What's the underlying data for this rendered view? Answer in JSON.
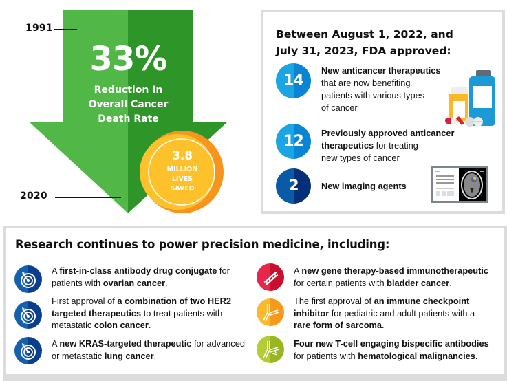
{
  "arrow": {
    "year_start": "1991",
    "year_end": "2020",
    "percent": "33%",
    "reduction_lines": [
      "Reduction In",
      "Overall Cancer",
      "Death Rate"
    ],
    "colors": {
      "light_green": "#51b848",
      "dark_green": "#2e9528"
    },
    "coin": {
      "number": "3.8",
      "lines": [
        "MILLION",
        "LIVES",
        "SAVED"
      ],
      "colors": {
        "yellow": "#fdc22b",
        "orange": "#f7941d"
      }
    }
  },
  "fda": {
    "title_lines": [
      "Between August 1, 2022, and",
      "July 31, 2023, FDA approved:"
    ],
    "items": [
      {
        "number": "14",
        "bold": "New anticancer therapeutics",
        "rest_lines": [
          "that are now benefiting",
          "patients with various types",
          "of cancer"
        ],
        "icon": "medicine-bottles-icon",
        "colors": [
          "#1aa6e4",
          "#0a85d6"
        ]
      },
      {
        "number": "12",
        "bold_lines": [
          "Previously approved anticancer",
          "therapeutics"
        ],
        "rest_inline": " for treating",
        "rest_lines": [
          "new types of cancer"
        ],
        "colors": [
          "#1aa6e4",
          "#0a85d6"
        ]
      },
      {
        "number": "2",
        "bold": "New imaging agents",
        "icon": "brain-scan-icon",
        "colors": [
          "#0b5aa8",
          "#062f7a"
        ]
      }
    ]
  },
  "research": {
    "title": "Research continues to power precision medicine, including:",
    "left_items": [
      {
        "icon": "target-icon",
        "line1": [
          {
            "t": "A ",
            "b": false
          },
          {
            "t": "first-in-class antibody drug conjugate",
            "b": true
          },
          {
            "t": " for",
            "b": false
          }
        ],
        "line2": [
          {
            "t": "patients with ",
            "b": false
          },
          {
            "t": "ovarian cancer",
            "b": true
          },
          {
            "t": ".",
            "b": false
          }
        ]
      },
      {
        "icon": "target-icon",
        "line1": [
          {
            "t": "First approval of ",
            "b": false
          },
          {
            "t": "a combination of two HER2",
            "b": true
          }
        ],
        "line2": [
          {
            "t": "targeted therapeutics",
            "b": true
          },
          {
            "t": " to treat patients with",
            "b": false
          }
        ],
        "line3": [
          {
            "t": "metastatic ",
            "b": false
          },
          {
            "t": "colon cancer",
            "b": true
          },
          {
            "t": ".",
            "b": false
          }
        ]
      },
      {
        "icon": "target-icon",
        "line1": [
          {
            "t": "A ",
            "b": false
          },
          {
            "t": "new KRAS-targeted therapeutic",
            "b": true
          },
          {
            "t": " for advanced",
            "b": false
          }
        ],
        "line2": [
          {
            "t": "or metastatic ",
            "b": false
          },
          {
            "t": "lung cancer",
            "b": true
          },
          {
            "t": ".",
            "b": false
          }
        ]
      }
    ],
    "right_items": [
      {
        "icon": "dna-icon",
        "line1": [
          {
            "t": "A ",
            "b": false
          },
          {
            "t": "new gene therapy-based immunotherapeutic",
            "b": true
          }
        ],
        "line2": [
          {
            "t": "for certain patients with ",
            "b": false
          },
          {
            "t": "bladder cancer",
            "b": true
          },
          {
            "t": ".",
            "b": false
          }
        ]
      },
      {
        "icon": "antibody-icon",
        "line1": [
          {
            "t": "The first approval of ",
            "b": false
          },
          {
            "t": "an immune checkpoint",
            "b": true
          }
        ],
        "line2": [
          {
            "t": "inhibitor",
            "b": true
          },
          {
            "t": " for pediatric and adult patients with a",
            "b": false
          }
        ],
        "line3": [
          {
            "t": "rare form of sarcoma",
            "b": true
          },
          {
            "t": ".",
            "b": false
          }
        ]
      },
      {
        "icon": "bispecific-antibody-icon",
        "line1": [
          {
            "t": "Four new T-cell engaging bispecific antibodies",
            "b": true
          }
        ],
        "line2": [
          {
            "t": "for patients with ",
            "b": false
          },
          {
            "t": "hematological malignancies",
            "b": true
          },
          {
            "t": ".",
            "b": false
          }
        ]
      }
    ],
    "icon_colors": {
      "target": [
        "#1660b0",
        "#0a3f8f"
      ],
      "dna": [
        "#e8254a",
        "#c8102e"
      ],
      "antibody": [
        "#fdb92c",
        "#f79a1c"
      ],
      "bispecific": [
        "#b5cd34",
        "#96b81e"
      ]
    }
  }
}
